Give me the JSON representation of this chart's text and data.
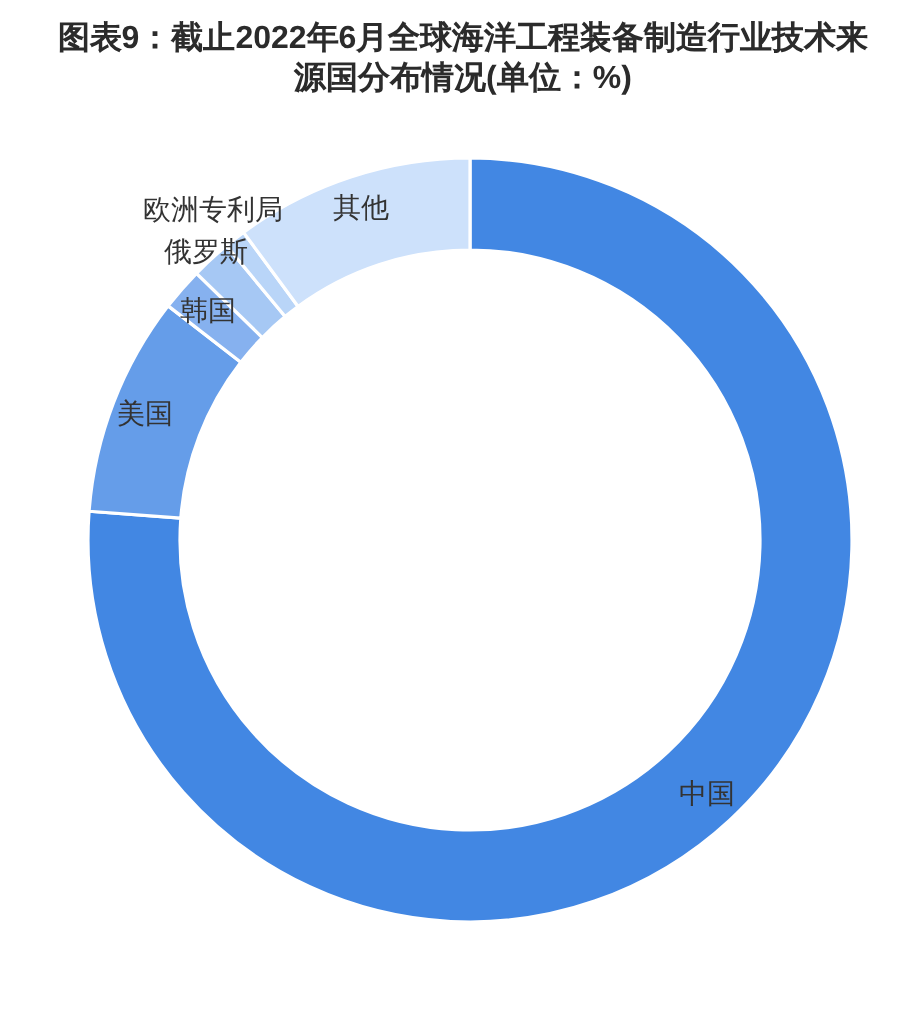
{
  "chart_data": {
    "type": "donut",
    "title": "图表9：截止2022年6月全球海洋工程装备制造行业技术来源国分布情况(单位：%)",
    "categories": [
      "中国",
      "美国",
      "韩国",
      "俄罗斯",
      "欧洲专利局",
      "其他"
    ],
    "values": [
      76.2,
      9.3,
      1.8,
      1.7,
      0.9,
      10.1
    ],
    "colors": [
      "#4287e3",
      "#659de9",
      "#86b1ef",
      "#a6c8f4",
      "#b9d5f8",
      "#cde1fb"
    ]
  }
}
